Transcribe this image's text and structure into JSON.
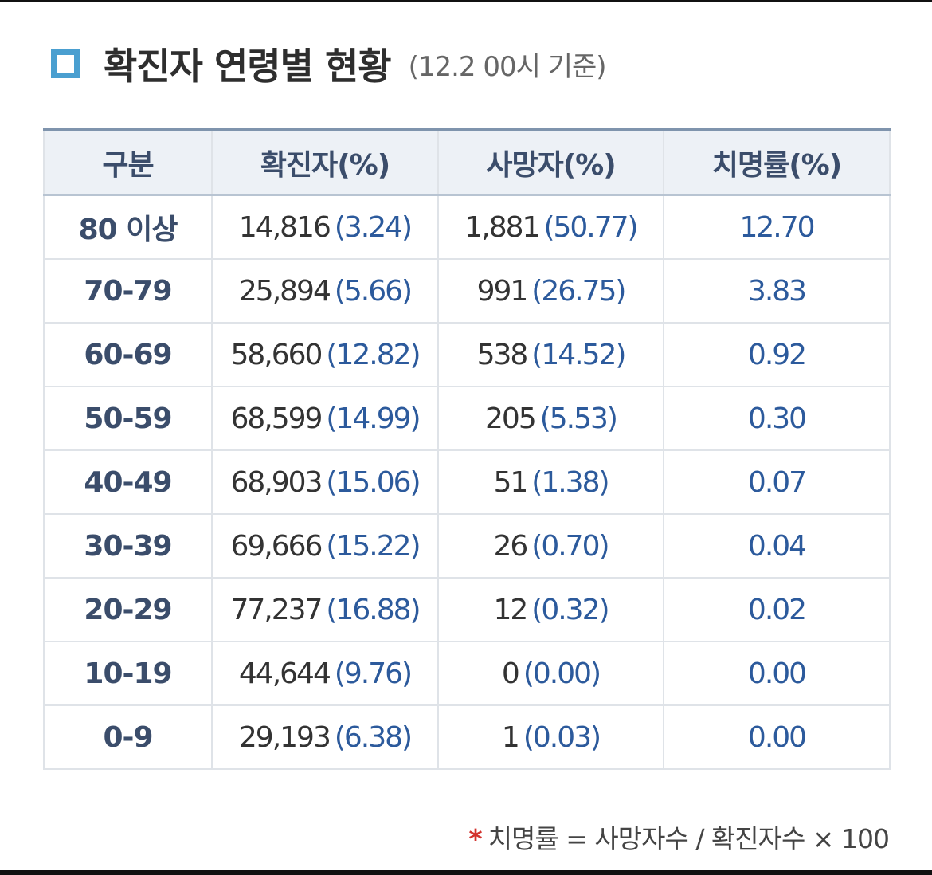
{
  "header": {
    "title": "확진자 연령별 현황",
    "note": "(12.2 00시 기준)",
    "marker_icon": "square-outline-icon",
    "marker_color": "#4a9fd0"
  },
  "table": {
    "columns": [
      "구분",
      "확진자(%)",
      "사망자(%)",
      "치명률(%)"
    ],
    "rows": [
      {
        "age": "80 이상",
        "confirmed": "14,816",
        "confirmed_pct": "(3.24)",
        "deaths": "1,881",
        "deaths_pct": "(50.77)",
        "fatality": "12.70"
      },
      {
        "age": "70-79",
        "confirmed": "25,894",
        "confirmed_pct": "(5.66)",
        "deaths": "991",
        "deaths_pct": "(26.75)",
        "fatality": "3.83"
      },
      {
        "age": "60-69",
        "confirmed": "58,660",
        "confirmed_pct": "(12.82)",
        "deaths": "538",
        "deaths_pct": "(14.52)",
        "fatality": "0.92"
      },
      {
        "age": "50-59",
        "confirmed": "68,599",
        "confirmed_pct": "(14.99)",
        "deaths": "205",
        "deaths_pct": "(5.53)",
        "fatality": "0.30"
      },
      {
        "age": "40-49",
        "confirmed": "68,903",
        "confirmed_pct": "(15.06)",
        "deaths": "51",
        "deaths_pct": "(1.38)",
        "fatality": "0.07"
      },
      {
        "age": "30-39",
        "confirmed": "69,666",
        "confirmed_pct": "(15.22)",
        "deaths": "26",
        "deaths_pct": "(0.70)",
        "fatality": "0.04"
      },
      {
        "age": "20-29",
        "confirmed": "77,237",
        "confirmed_pct": "(16.88)",
        "deaths": "12",
        "deaths_pct": "(0.32)",
        "fatality": "0.02"
      },
      {
        "age": "10-19",
        "confirmed": "44,644",
        "confirmed_pct": "(9.76)",
        "deaths": "0",
        "deaths_pct": "(0.00)",
        "fatality": "0.00"
      },
      {
        "age": "0-9",
        "confirmed": "29,193",
        "confirmed_pct": "(6.38)",
        "deaths": "1",
        "deaths_pct": "(0.03)",
        "fatality": "0.00"
      }
    ]
  },
  "footnote": {
    "asterisk": "*",
    "text": "치명률 = 사망자수 / 확진자수 × 100"
  },
  "colors": {
    "header_text": "#3b4d6b",
    "header_bg": "#edf1f6",
    "percent_text": "#2c5a9c",
    "top_border": "#7f94ad",
    "asterisk": "#d2322d"
  }
}
